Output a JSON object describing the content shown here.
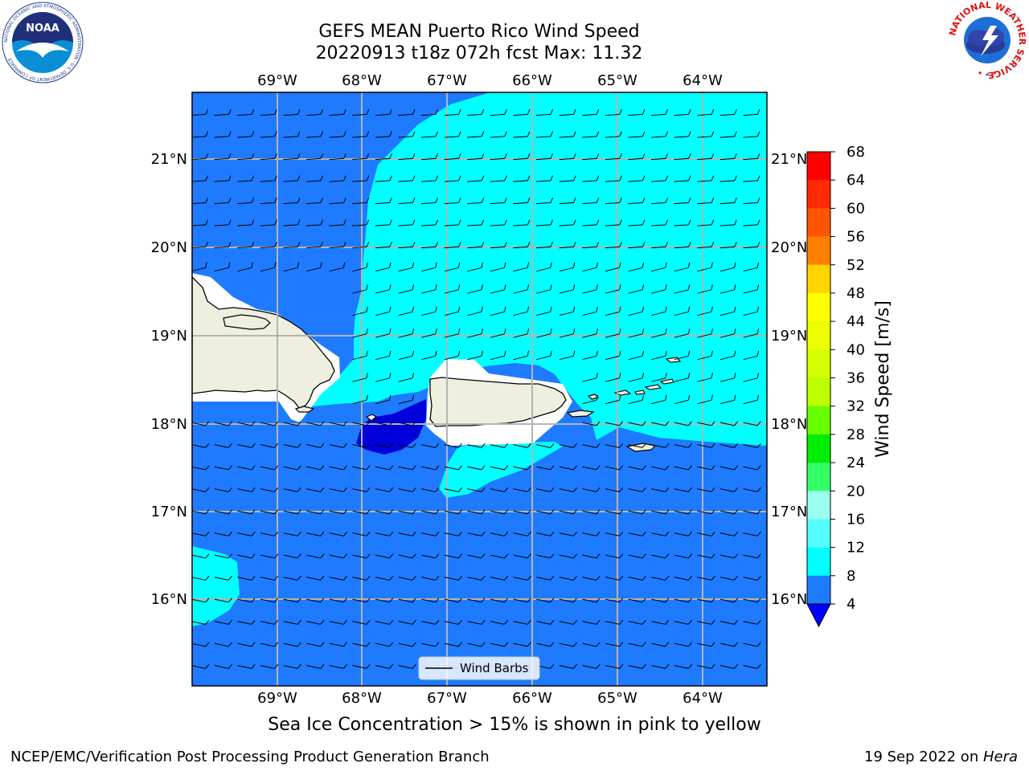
{
  "header": {
    "title_line1": "GEFS MEAN Puerto Rico Wind Speed",
    "title_line2": "20220913 t18z 072h fcst   Max: 11.32"
  },
  "map": {
    "lon_labels": [
      "69°W",
      "68°W",
      "67°W",
      "66°W",
      "65°W",
      "64°W"
    ],
    "lat_labels": [
      "21°N",
      "20°N",
      "19°N",
      "18°N",
      "17°N",
      "16°N"
    ],
    "legend_label": "Wind Barbs",
    "land_color": "#efefdf",
    "wind_color_levels": {
      "4-8": "#1e7bff",
      "8-12": "#00ffff",
      "below-4": "#0000dd"
    }
  },
  "colorbar": {
    "label": "Wind Speed [m/s]",
    "ticks": [
      "68",
      "64",
      "60",
      "56",
      "52",
      "48",
      "44",
      "40",
      "36",
      "32",
      "28",
      "24",
      "20",
      "16",
      "12",
      "8",
      "4"
    ],
    "colors": [
      "#ff0000",
      "#ff2a00",
      "#ff5500",
      "#ff8000",
      "#ffaa00",
      "#ffd400",
      "#ffff00",
      "#ecff00",
      "#d4ff00",
      "#bcff00",
      "#66ff00",
      "#00ee00",
      "#33ff66",
      "#66ff99",
      "#99ffee",
      "#55ffff",
      "#00ffff",
      "#1e7bff"
    ],
    "extend_color": "#0000ff"
  },
  "footer": {
    "caption": "Sea Ice Concentration > 15% is shown in pink to yellow",
    "left": "NCEP/EMC/Verification Post Processing Product Generation Branch",
    "right_date": "19 Sep 2022 on ",
    "right_machine": "Hera"
  },
  "logos": {
    "noaa_text": "NOAA",
    "noaa_ring": "NATIONAL OCEANIC AND ATMOSPHERIC ADMINISTRATION · U.S. DEPARTMENT OF COMMERCE",
    "nws_ring": "NATIONAL WEATHER SERVICE"
  }
}
